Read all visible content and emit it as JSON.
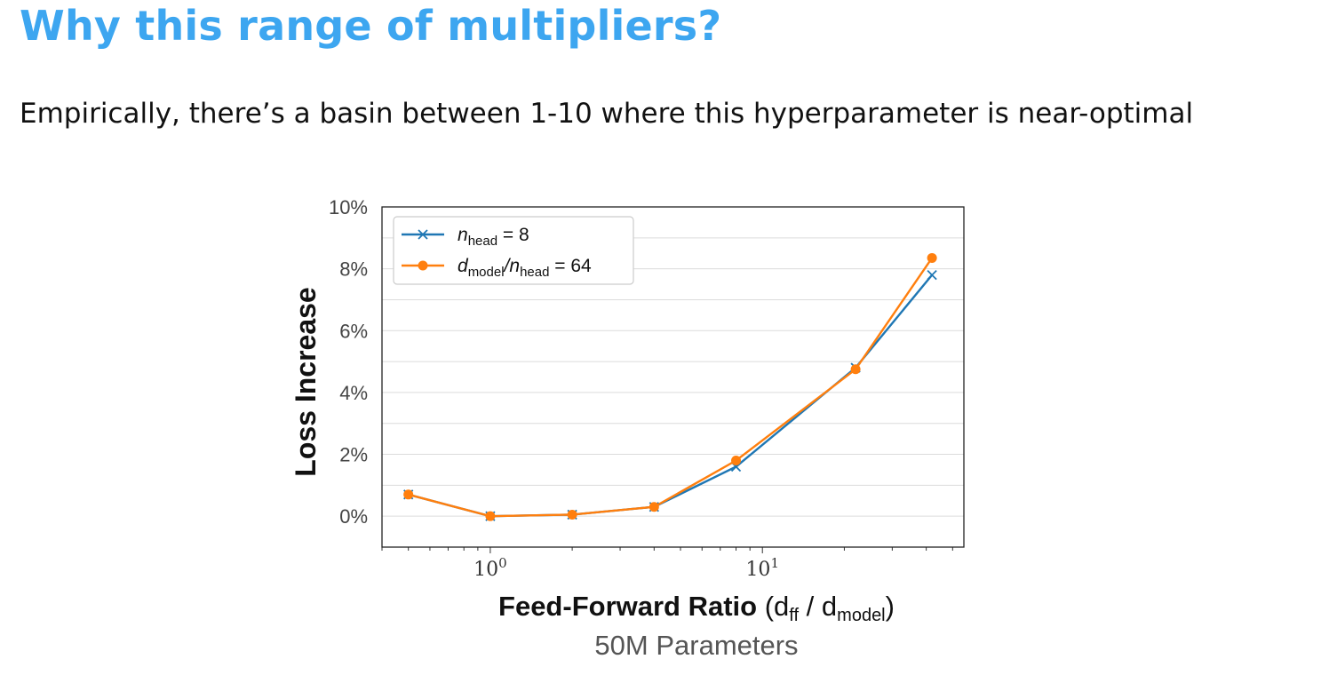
{
  "slide": {
    "title": "Why this range of multipliers?",
    "subtitle": "Empirically, there’s a  basin between 1-10 where this hyperparameter is near-optimal"
  },
  "chart_data": {
    "type": "line",
    "x_scale": "log",
    "xlim": [
      0.4,
      55
    ],
    "ylim": [
      -1,
      10
    ],
    "ylabel": "Loss Increase",
    "xlabel": {
      "bold": "Feed-Forward Ratio",
      "open": " (d",
      "sub1": "ff",
      "mid": " / d",
      "sub2": "model",
      "close": ")"
    },
    "caption": "50M Parameters",
    "y_ticks": [
      {
        "value": 10,
        "label": "10%"
      },
      {
        "value": 8,
        "label": "8%"
      },
      {
        "value": 6,
        "label": "6%"
      },
      {
        "value": 4,
        "label": "4%"
      },
      {
        "value": 2,
        "label": "2%"
      },
      {
        "value": 0,
        "label": "0%"
      }
    ],
    "x_ticks": [
      {
        "value": 1,
        "base": "10",
        "exp": "0"
      },
      {
        "value": 10,
        "base": "10",
        "exp": "1"
      }
    ],
    "grid": "horizontal",
    "legend_position": "top-left",
    "series": [
      {
        "legend": {
          "var": "n",
          "sub": "head",
          "rest": " = 8"
        },
        "color": "#1F77B4",
        "marker": "x",
        "points": [
          {
            "x": 0.5,
            "y": 0.7
          },
          {
            "x": 1,
            "y": 0.0
          },
          {
            "x": 2,
            "y": 0.05
          },
          {
            "x": 4,
            "y": 0.3
          },
          {
            "x": 8,
            "y": 1.6
          },
          {
            "x": 22,
            "y": 4.8
          },
          {
            "x": 42,
            "y": 7.8
          }
        ]
      },
      {
        "legend": {
          "var": "d",
          "sub": "model",
          "mid": "/n",
          "sub2": "head",
          "rest": " = 64"
        },
        "color": "#FF7F0E",
        "marker": "o",
        "points": [
          {
            "x": 0.5,
            "y": 0.7
          },
          {
            "x": 1,
            "y": 0.0
          },
          {
            "x": 2,
            "y": 0.05
          },
          {
            "x": 4,
            "y": 0.3
          },
          {
            "x": 8,
            "y": 1.8
          },
          {
            "x": 22,
            "y": 4.75
          },
          {
            "x": 42,
            "y": 8.35
          }
        ]
      }
    ]
  }
}
